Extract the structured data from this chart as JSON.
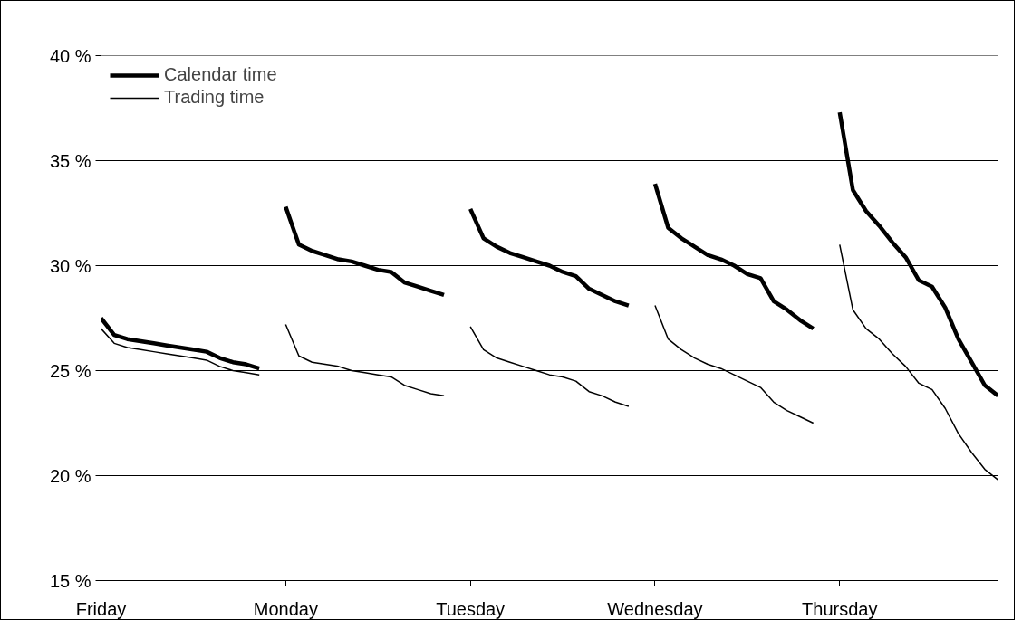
{
  "chart_data": {
    "type": "line",
    "categories": [
      "Friday",
      null,
      null,
      null,
      null,
      null,
      null,
      null,
      null,
      null,
      null,
      null,
      null,
      null,
      "Monday",
      null,
      null,
      null,
      null,
      null,
      null,
      null,
      null,
      null,
      null,
      null,
      null,
      null,
      "Tuesday",
      null,
      null,
      null,
      null,
      null,
      null,
      null,
      null,
      null,
      null,
      null,
      null,
      null,
      "Wednesday",
      null,
      null,
      null,
      null,
      null,
      null,
      null,
      null,
      null,
      null,
      null,
      null,
      null,
      "Thursday",
      null,
      null,
      null,
      null,
      null,
      null,
      null,
      null,
      null,
      null,
      null,
      null
    ],
    "series": [
      {
        "name": "Calendar time",
        "color": "#000000",
        "values": [
          27.5,
          26.7,
          26.5,
          26.4,
          26.3,
          26.2,
          26.1,
          26.0,
          25.9,
          25.6,
          25.4,
          25.3,
          25.1,
          null,
          32.8,
          31.0,
          30.7,
          30.5,
          30.3,
          30.2,
          30.0,
          29.8,
          29.7,
          29.2,
          29.0,
          28.8,
          28.6,
          null,
          32.7,
          31.3,
          30.9,
          30.6,
          30.4,
          30.2,
          30.0,
          29.7,
          29.5,
          28.9,
          28.6,
          28.3,
          28.1,
          null,
          33.9,
          31.8,
          31.3,
          30.9,
          30.5,
          30.3,
          30.0,
          29.6,
          29.4,
          28.3,
          27.9,
          27.4,
          27.0,
          null,
          37.3,
          33.6,
          32.6,
          31.9,
          31.1,
          30.4,
          29.3,
          29.0,
          28.0,
          26.5,
          25.4,
          24.3,
          23.8
        ]
      },
      {
        "name": "Trading time",
        "color": "#000000",
        "values": [
          27.0,
          26.3,
          26.1,
          26.0,
          25.9,
          25.8,
          25.7,
          25.6,
          25.5,
          25.2,
          25.0,
          24.9,
          24.8,
          null,
          27.2,
          25.7,
          25.4,
          25.3,
          25.2,
          25.0,
          24.9,
          24.8,
          24.7,
          24.3,
          24.1,
          23.9,
          23.8,
          null,
          27.1,
          26.0,
          25.6,
          25.4,
          25.2,
          25.0,
          24.8,
          24.7,
          24.5,
          24.0,
          23.8,
          23.5,
          23.3,
          null,
          28.1,
          26.5,
          26.0,
          25.6,
          25.3,
          25.1,
          24.8,
          24.5,
          24.2,
          23.5,
          23.1,
          22.8,
          22.5,
          null,
          31.0,
          27.9,
          27.0,
          26.5,
          25.8,
          25.2,
          24.4,
          24.1,
          23.2,
          22.0,
          21.1,
          20.3,
          19.8
        ]
      }
    ],
    "ylim": [
      15,
      40
    ],
    "yticks": [
      {
        "value": 15,
        "label": "15 %"
      },
      {
        "value": 20,
        "label": "20 %"
      },
      {
        "value": 25,
        "label": "25 %"
      },
      {
        "value": 30,
        "label": "30 %"
      },
      {
        "value": 35,
        "label": "35 %"
      },
      {
        "value": 40,
        "label": "40 %"
      }
    ],
    "grid": "y",
    "legend": "top left",
    "marker": "none",
    "line_style": "solid"
  }
}
